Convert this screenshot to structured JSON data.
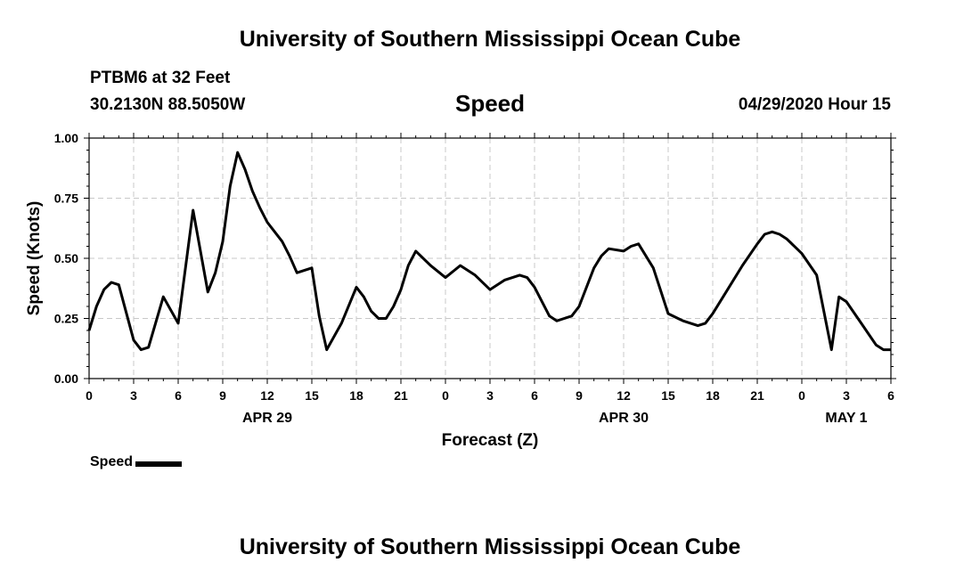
{
  "header": {
    "title": "University of Southern Mississippi Ocean Cube",
    "station": "PTBM6 at 32 Feet",
    "coordinates": "30.2130N 88.5050W",
    "variable": "Speed",
    "datetime": "04/29/2020 Hour 15"
  },
  "footer": {
    "title": "University of Southern Mississippi Ocean Cube"
  },
  "legend": {
    "label": "Speed"
  },
  "chart_data": {
    "type": "line",
    "title": "Speed",
    "xlabel": "Forecast (Z)",
    "ylabel": "Speed (Knots)",
    "ylim": [
      0,
      1
    ],
    "xlim": [
      "2020-04-29T00:00Z",
      "2020-05-01T06:00Z"
    ],
    "yticks": [
      "0.00",
      "0.25",
      "0.50",
      "0.75",
      "1.00"
    ],
    "xtick_labels": [
      "0",
      "3",
      "6",
      "9",
      "12",
      "15",
      "18",
      "21",
      "0",
      "3",
      "6",
      "9",
      "12",
      "15",
      "18",
      "21",
      "0",
      "3",
      "6"
    ],
    "date_labels": [
      {
        "label": "APR 29",
        "at": "2020-04-29T12:00Z"
      },
      {
        "label": "APR 30",
        "at": "2020-04-30T12:00Z"
      },
      {
        "label": "MAY 1",
        "at": "2020-05-01T03:00Z"
      }
    ],
    "grid": true,
    "legend_position": "bottom-left",
    "series": [
      {
        "name": "Speed",
        "color": "#000000",
        "x": [
          "2020-04-29T00:00Z",
          "2020-04-29T00:30Z",
          "2020-04-29T01:00Z",
          "2020-04-29T01:30Z",
          "2020-04-29T02:00Z",
          "2020-04-29T03:00Z",
          "2020-04-29T03:30Z",
          "2020-04-29T04:00Z",
          "2020-04-29T05:00Z",
          "2020-04-29T06:00Z",
          "2020-04-29T07:00Z",
          "2020-04-29T08:00Z",
          "2020-04-29T08:30Z",
          "2020-04-29T09:00Z",
          "2020-04-29T09:30Z",
          "2020-04-29T10:00Z",
          "2020-04-29T10:30Z",
          "2020-04-29T11:00Z",
          "2020-04-29T11:30Z",
          "2020-04-29T12:00Z",
          "2020-04-29T13:00Z",
          "2020-04-29T13:30Z",
          "2020-04-29T14:00Z",
          "2020-04-29T15:00Z",
          "2020-04-29T15:30Z",
          "2020-04-29T16:00Z",
          "2020-04-29T17:00Z",
          "2020-04-29T18:00Z",
          "2020-04-29T18:30Z",
          "2020-04-29T19:00Z",
          "2020-04-29T19:30Z",
          "2020-04-29T20:00Z",
          "2020-04-29T20:30Z",
          "2020-04-29T21:00Z",
          "2020-04-29T21:30Z",
          "2020-04-29T22:00Z",
          "2020-04-29T23:00Z",
          "2020-04-30T00:00Z",
          "2020-04-30T01:00Z",
          "2020-04-30T02:00Z",
          "2020-04-30T03:00Z",
          "2020-04-30T04:00Z",
          "2020-04-30T05:00Z",
          "2020-04-30T05:30Z",
          "2020-04-30T06:00Z",
          "2020-04-30T07:00Z",
          "2020-04-30T07:30Z",
          "2020-04-30T08:00Z",
          "2020-04-30T08:30Z",
          "2020-04-30T09:00Z",
          "2020-04-30T10:00Z",
          "2020-04-30T10:30Z",
          "2020-04-30T11:00Z",
          "2020-04-30T12:00Z",
          "2020-04-30T12:30Z",
          "2020-04-30T13:00Z",
          "2020-04-30T13:30Z",
          "2020-04-30T14:00Z",
          "2020-04-30T15:00Z",
          "2020-04-30T16:00Z",
          "2020-04-30T17:00Z",
          "2020-04-30T17:30Z",
          "2020-04-30T18:00Z",
          "2020-04-30T19:00Z",
          "2020-04-30T20:00Z",
          "2020-04-30T21:00Z",
          "2020-04-30T21:30Z",
          "2020-04-30T22:00Z",
          "2020-04-30T22:30Z",
          "2020-04-30T23:00Z",
          "2020-05-01T00:00Z",
          "2020-05-01T01:00Z",
          "2020-05-01T02:00Z",
          "2020-05-01T02:30Z",
          "2020-05-01T03:00Z",
          "2020-05-01T04:00Z",
          "2020-05-01T05:00Z",
          "2020-05-01T05:30Z",
          "2020-05-01T06:00Z"
        ],
        "values": [
          0.2,
          0.3,
          0.37,
          0.4,
          0.39,
          0.16,
          0.12,
          0.13,
          0.34,
          0.23,
          0.7,
          0.36,
          0.44,
          0.57,
          0.8,
          0.94,
          0.87,
          0.78,
          0.71,
          0.65,
          0.57,
          0.51,
          0.44,
          0.46,
          0.26,
          0.12,
          0.23,
          0.38,
          0.34,
          0.28,
          0.25,
          0.25,
          0.3,
          0.37,
          0.47,
          0.53,
          0.47,
          0.42,
          0.47,
          0.43,
          0.37,
          0.41,
          0.43,
          0.42,
          0.38,
          0.26,
          0.24,
          0.25,
          0.26,
          0.3,
          0.46,
          0.51,
          0.54,
          0.53,
          0.55,
          0.56,
          0.51,
          0.46,
          0.27,
          0.24,
          0.22,
          0.23,
          0.27,
          0.37,
          0.47,
          0.56,
          0.6,
          0.61,
          0.6,
          0.58,
          0.52,
          0.43,
          0.12,
          0.34,
          0.32,
          0.23,
          0.14,
          0.12,
          0.12
        ]
      }
    ]
  }
}
